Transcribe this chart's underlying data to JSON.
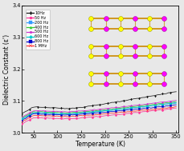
{
  "title": "",
  "xlabel": "Temperature (K)",
  "ylabel": "Dielectric Constant (ε')",
  "xlim": [
    25,
    355
  ],
  "ylim": [
    3.0,
    3.4
  ],
  "yticks": [
    3.0,
    3.1,
    3.2,
    3.3,
    3.4
  ],
  "xticks": [
    50,
    100,
    150,
    200,
    250,
    300,
    350
  ],
  "frequencies": [
    "10Hz",
    "50 Hz",
    "200 Hz",
    "400 Hz",
    "500 Hz",
    "600 Hz",
    "800 Hz",
    "1 MHz"
  ],
  "colors": [
    "#1a1a1a",
    "#ff3399",
    "#3399ff",
    "#33cc33",
    "#cc33cc",
    "#00cccc",
    "#0000cc",
    "#ff3333"
  ],
  "linestyles": [
    "--",
    "-",
    "-",
    "-",
    "-",
    "-",
    "-",
    "--"
  ],
  "markers": [
    "d",
    "o",
    "s",
    "^",
    "p",
    "D",
    "s",
    "x"
  ],
  "marker_colors": [
    "black",
    "#ff3399",
    "#3399ff",
    "#33cc33",
    "#cc33cc",
    "#00cccc",
    "#0000cc",
    "#ff3333"
  ],
  "start_values": [
    3.06,
    3.028,
    3.043,
    3.047,
    3.05,
    3.044,
    3.04,
    3.035
  ],
  "peak_values": [
    3.082,
    3.048,
    3.063,
    3.067,
    3.07,
    3.064,
    3.06,
    3.055
  ],
  "trough_values": [
    3.076,
    3.044,
    3.059,
    3.063,
    3.066,
    3.06,
    3.056,
    3.051
  ],
  "end_values": [
    3.13,
    3.078,
    3.095,
    3.098,
    3.102,
    3.094,
    3.088,
    3.082
  ],
  "peak_T": 50,
  "trough_T": 120,
  "figsize": [
    2.3,
    1.89
  ],
  "dpi": 100,
  "bg_color": "#e8e8e8"
}
